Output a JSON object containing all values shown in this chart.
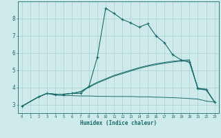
{
  "xlabel": "Humidex (Indice chaleur)",
  "bg_color": "#ceeaea",
  "grid_color": "#aacfcf",
  "line_color": "#1a6b6b",
  "xlim": [
    -0.5,
    23.5
  ],
  "ylim": [
    2.5,
    9.0
  ],
  "yticks": [
    3,
    4,
    5,
    6,
    7,
    8
  ],
  "xticks": [
    0,
    1,
    2,
    3,
    4,
    5,
    6,
    7,
    8,
    9,
    10,
    11,
    12,
    13,
    14,
    15,
    16,
    17,
    18,
    19,
    20,
    21,
    22,
    23
  ],
  "line1_x": [
    0,
    2,
    3,
    4,
    5,
    6,
    7,
    8,
    9,
    10,
    11,
    12,
    13,
    14,
    15,
    16,
    17,
    18,
    19,
    20,
    21,
    22,
    23
  ],
  "line1_y": [
    2.9,
    3.45,
    3.65,
    3.6,
    3.6,
    3.65,
    3.65,
    4.05,
    5.75,
    8.6,
    8.3,
    7.95,
    7.75,
    7.5,
    7.7,
    7.0,
    6.6,
    5.9,
    5.6,
    5.45,
    3.95,
    3.85,
    3.15
  ],
  "line2_x": [
    0,
    2,
    3,
    4,
    5,
    6,
    7,
    8,
    9,
    10,
    11,
    12,
    13,
    14,
    15,
    16,
    17,
    18,
    19,
    20,
    21,
    22,
    23
  ],
  "line2_y": [
    2.9,
    3.45,
    3.65,
    3.6,
    3.6,
    3.65,
    3.75,
    4.0,
    4.25,
    4.45,
    4.65,
    4.8,
    4.95,
    5.1,
    5.22,
    5.32,
    5.4,
    5.47,
    5.52,
    5.55,
    3.9,
    3.85,
    3.15
  ],
  "line3_x": [
    0,
    2,
    3,
    4,
    5,
    6,
    7,
    8,
    9,
    10,
    11,
    12,
    13,
    14,
    15,
    16,
    17,
    18,
    19,
    20,
    21,
    22,
    23
  ],
  "line3_y": [
    2.9,
    3.45,
    3.65,
    3.6,
    3.6,
    3.65,
    3.75,
    4.05,
    4.3,
    4.5,
    4.7,
    4.85,
    5.0,
    5.15,
    5.27,
    5.37,
    5.45,
    5.52,
    5.57,
    5.6,
    3.95,
    3.9,
    3.15
  ],
  "line4_x": [
    0,
    2,
    3,
    4,
    5,
    6,
    7,
    8,
    9,
    10,
    11,
    12,
    13,
    14,
    15,
    16,
    17,
    18,
    19,
    20,
    21,
    22,
    23
  ],
  "line4_y": [
    2.9,
    3.45,
    3.65,
    3.55,
    3.52,
    3.52,
    3.5,
    3.5,
    3.48,
    3.48,
    3.47,
    3.47,
    3.47,
    3.45,
    3.45,
    3.43,
    3.42,
    3.4,
    3.38,
    3.35,
    3.32,
    3.2,
    3.15
  ],
  "line5_x": [
    8,
    9
  ],
  "line5_y": [
    4.05,
    5.75
  ]
}
